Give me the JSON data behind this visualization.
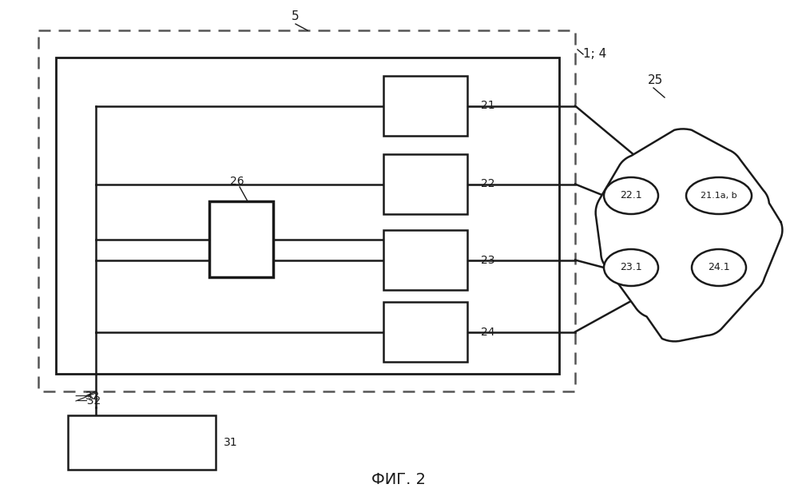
{
  "bg_color": "#ffffff",
  "lc": "#1a1a1a",
  "title": "ФИГ. 2",
  "title_fontsize": 14,
  "fig_w": 9.99,
  "fig_h": 6.26
}
